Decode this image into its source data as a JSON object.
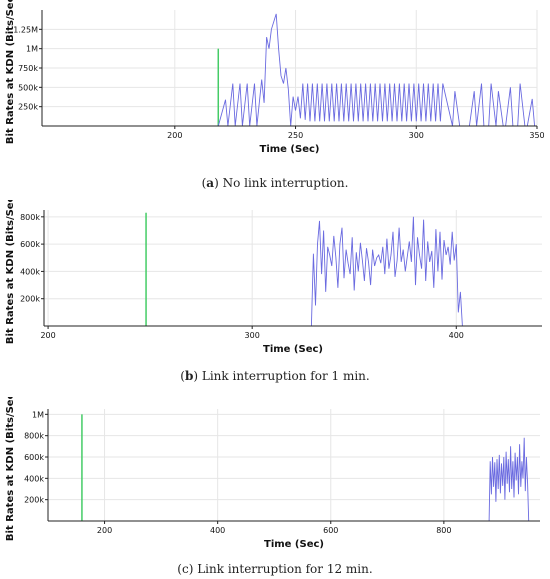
{
  "colors": {
    "line": "#6a6ae0",
    "marker": "#44cc66",
    "axis": "#222222",
    "grid": "#e6e6e6"
  },
  "chart_data": [
    {
      "type": "line",
      "caption_label": "a",
      "caption_text": " No link interruption.",
      "xlabel": "Time (Sec)",
      "ylabel": "Bit Rates at KDN (Bits/Sec)",
      "xlim": [
        145,
        350
      ],
      "ylim": [
        0,
        1500000
      ],
      "xticks": [
        200,
        250,
        300,
        350
      ],
      "yticks": [
        250000,
        500000,
        750000,
        1000000,
        1250000
      ],
      "ytick_labels": [
        "250k",
        "500k",
        "750k",
        "1M",
        "1.25M"
      ],
      "marker_x": 218,
      "series": [
        {
          "x": [
            218,
            221,
            222,
            224,
            225,
            227,
            228,
            230,
            231,
            233,
            234,
            236,
            237,
            238,
            239,
            240,
            241,
            242,
            243,
            244,
            245,
            246,
            247,
            248,
            249,
            250,
            251,
            252,
            253,
            254,
            255,
            256,
            257,
            258,
            259,
            260,
            261,
            262,
            263,
            264,
            265,
            266,
            267,
            268,
            269,
            270,
            271,
            272,
            273,
            274,
            275,
            276,
            277,
            278,
            279,
            280,
            281,
            282,
            283,
            284,
            285,
            286,
            287,
            288,
            289,
            290,
            291,
            292,
            293,
            294,
            295,
            296,
            297,
            298,
            299,
            300,
            301,
            302,
            303,
            304,
            305,
            306,
            307,
            308,
            309,
            310,
            311,
            315,
            316,
            318,
            319,
            321,
            322,
            324,
            325,
            327,
            328,
            330,
            331,
            333,
            334,
            336,
            337,
            339,
            340,
            342,
            343,
            345,
            346,
            348,
            349
          ],
          "values": [
            0,
            340,
            0,
            550,
            0,
            550,
            0,
            550,
            0,
            550,
            0,
            600,
            300,
            1150,
            1000,
            1250,
            1350,
            1450,
            1000,
            650,
            550,
            750,
            480,
            0,
            380,
            200,
            380,
            100,
            550,
            80,
            550,
            60,
            550,
            60,
            550,
            60,
            550,
            60,
            550,
            60,
            550,
            60,
            550,
            60,
            550,
            60,
            550,
            60,
            550,
            60,
            550,
            60,
            550,
            60,
            550,
            60,
            550,
            60,
            550,
            60,
            550,
            60,
            550,
            60,
            550,
            60,
            550,
            60,
            550,
            60,
            550,
            60,
            550,
            60,
            550,
            60,
            550,
            60,
            550,
            60,
            550,
            60,
            550,
            60,
            550,
            60,
            550,
            0,
            450,
            0,
            0,
            0,
            0,
            450,
            0,
            550,
            0,
            0,
            550,
            0,
            450,
            0,
            0,
            500,
            0,
            0,
            550,
            0,
            0,
            350,
            0
          ],
          "unit_multiplier": 1000
        }
      ]
    },
    {
      "type": "line",
      "caption_label": "b",
      "caption_text": " Link interruption for 1 min.",
      "xlabel": "Time (Sec)",
      "ylabel": "Bit Rates at KDN (Bits/Sec)",
      "xlim": [
        198,
        442
      ],
      "ylim": [
        0,
        850000
      ],
      "xticks": [
        200,
        300,
        400
      ],
      "yticks": [
        200000,
        400000,
        600000,
        800000
      ],
      "ytick_labels": [
        "200k",
        "400k",
        "600k",
        "800k"
      ],
      "marker_x": 248,
      "series": [
        {
          "x": [
            329,
            330,
            331,
            332,
            333,
            334,
            335,
            336,
            337,
            338,
            339,
            340,
            341,
            342,
            343,
            344,
            345,
            346,
            347,
            348,
            349,
            350,
            351,
            352,
            353,
            354,
            355,
            356,
            357,
            358,
            359,
            360,
            361,
            362,
            363,
            364,
            365,
            366,
            367,
            368,
            369,
            370,
            371,
            372,
            373,
            374,
            375,
            376,
            377,
            378,
            379,
            380,
            381,
            382,
            383,
            384,
            385,
            386,
            387,
            388,
            389,
            390,
            391,
            392,
            393,
            394,
            395,
            396,
            397,
            398,
            399,
            400,
            401,
            402,
            403
          ],
          "values": [
            0,
            530,
            150,
            600,
            770,
            380,
            700,
            250,
            580,
            520,
            440,
            660,
            500,
            280,
            600,
            720,
            350,
            560,
            460,
            380,
            650,
            260,
            540,
            400,
            610,
            480,
            330,
            570,
            470,
            300,
            560,
            440,
            500,
            520,
            460,
            580,
            380,
            640,
            420,
            520,
            690,
            360,
            480,
            720,
            470,
            560,
            400,
            510,
            620,
            470,
            800,
            300,
            650,
            520,
            420,
            780,
            330,
            620,
            470,
            550,
            280,
            710,
            400,
            690,
            340,
            630,
            520,
            580,
            450,
            690,
            480,
            600,
            100,
            250,
            0
          ],
          "unit_multiplier": 1000
        }
      ]
    },
    {
      "type": "line",
      "caption_label": "",
      "caption_text": "(c) Link interruption for 12 min.",
      "xlabel": "Time (Sec)",
      "ylabel": "Bit Rates at KDN (Bits/Sec)",
      "xlim": [
        100,
        970
      ],
      "ylim": [
        0,
        1050000
      ],
      "xticks": [
        200,
        400,
        600,
        800
      ],
      "yticks": [
        200000,
        400000,
        600000,
        800000,
        1000000
      ],
      "ytick_labels": [
        "200k",
        "400k",
        "600k",
        "800k",
        "1M"
      ],
      "marker_x": 160,
      "series": [
        {
          "x": [
            880,
            882,
            884,
            886,
            888,
            890,
            892,
            894,
            896,
            898,
            900,
            902,
            904,
            906,
            908,
            910,
            912,
            914,
            916,
            918,
            920,
            922,
            924,
            926,
            928,
            930,
            932,
            934,
            936,
            938,
            940,
            942,
            944,
            946,
            948,
            950
          ],
          "values": [
            0,
            560,
            250,
            600,
            320,
            550,
            180,
            580,
            300,
            620,
            260,
            540,
            330,
            600,
            200,
            650,
            350,
            580,
            270,
            700,
            300,
            560,
            220,
            640,
            380,
            600,
            250,
            720,
            320,
            560,
            400,
            780,
            280,
            600,
            350,
            0
          ],
          "unit_multiplier": 1000
        }
      ]
    }
  ]
}
